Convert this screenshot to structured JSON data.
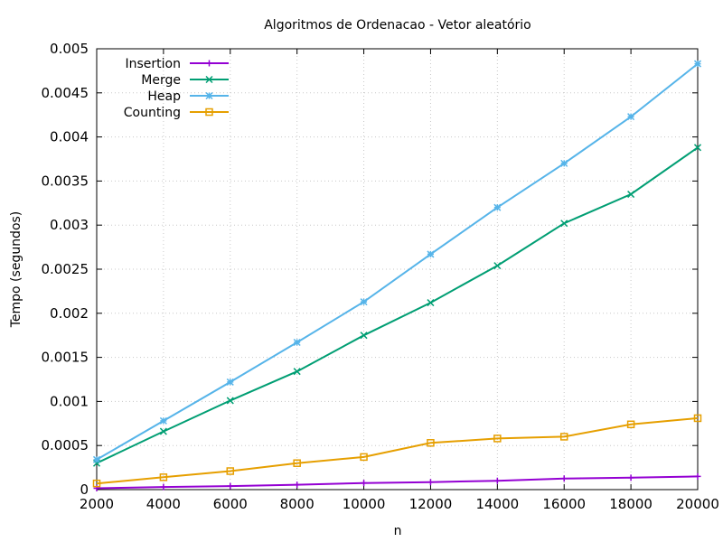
{
  "chart_data": {
    "type": "line",
    "title": "Algoritmos de Ordenacao - Vetor aleatório",
    "xlabel": "n",
    "ylabel": "Tempo (segundos)",
    "xlim": [
      2000,
      20000
    ],
    "ylim": [
      0,
      0.005
    ],
    "x_ticks": [
      2000,
      4000,
      6000,
      8000,
      10000,
      12000,
      14000,
      16000,
      18000,
      20000
    ],
    "y_ticks": [
      0,
      0.0005,
      0.001,
      0.0015,
      0.002,
      0.0025,
      0.003,
      0.0035,
      0.004,
      0.0045,
      0.005
    ],
    "x_tick_labels": [
      "2000",
      "4000",
      "6000",
      "8000",
      "10000",
      "12000",
      "14000",
      "16000",
      "18000",
      "20000"
    ],
    "y_tick_labels": [
      "0",
      "0.0005",
      "0.001",
      "0.0015",
      "0.002",
      "0.0025",
      "0.003",
      "0.0035",
      "0.004",
      "0.0045",
      "0.005"
    ],
    "grid": true,
    "legend_position": "top-left",
    "x": [
      2000,
      4000,
      6000,
      8000,
      10000,
      12000,
      14000,
      16000,
      18000,
      20000
    ],
    "series": [
      {
        "name": "Insertion",
        "color": "#9400d3",
        "marker": "plus",
        "values": [
          1.5e-05,
          3e-05,
          4e-05,
          5.5e-05,
          7.5e-05,
          8.5e-05,
          0.0001,
          0.000125,
          0.000135,
          0.00015
        ]
      },
      {
        "name": "Merge",
        "color": "#009e73",
        "marker": "cross",
        "values": [
          0.0003,
          0.00066,
          0.00101,
          0.00134,
          0.00175,
          0.00212,
          0.00254,
          0.00302,
          0.00335,
          0.00388
        ]
      },
      {
        "name": "Heap",
        "color": "#56b4e9",
        "marker": "star",
        "values": [
          0.00034,
          0.00078,
          0.00122,
          0.00167,
          0.00213,
          0.00267,
          0.0032,
          0.0037,
          0.00423,
          0.00483
        ]
      },
      {
        "name": "Counting",
        "color": "#e69f00",
        "marker": "square",
        "values": [
          7e-05,
          0.00014,
          0.00021,
          0.0003,
          0.00037,
          0.00053,
          0.00058,
          0.0006,
          0.00074,
          0.00081
        ]
      }
    ]
  }
}
